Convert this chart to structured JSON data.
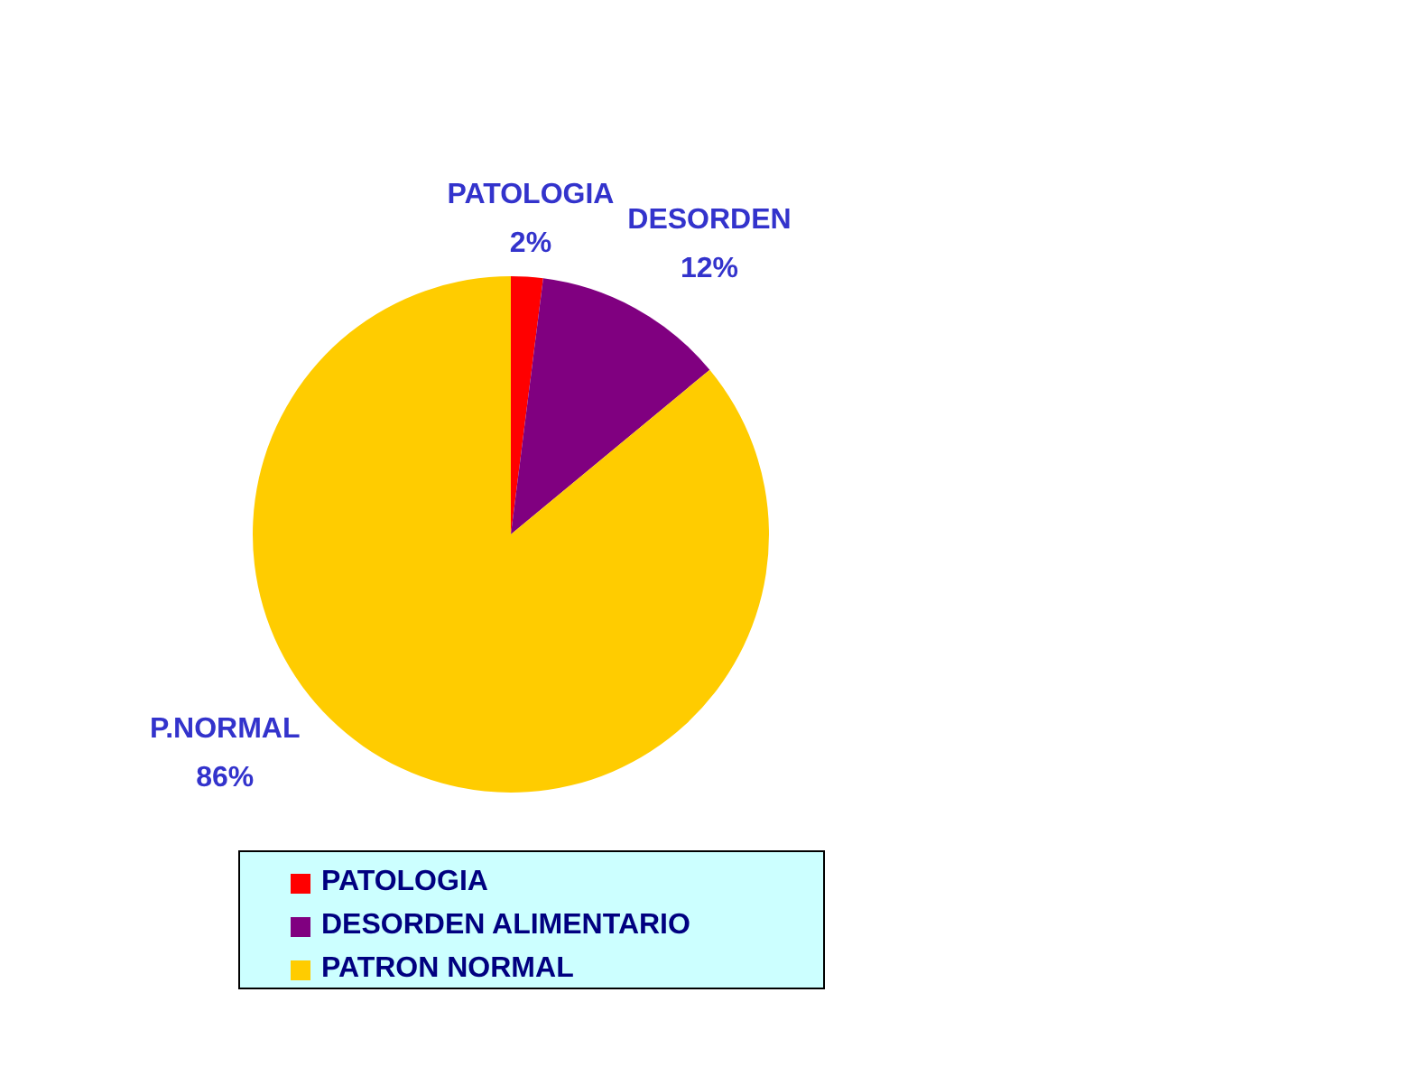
{
  "chart_data": {
    "type": "pie",
    "categories": [
      "PATOLOGIA",
      "DESORDEN ALIMENTARIO",
      "PATRON NORMAL"
    ],
    "values": [
      2,
      12,
      86
    ],
    "colors": [
      "#ff0000",
      "#800080",
      "#ffcc00"
    ],
    "value_labels": [
      "2%",
      "12%",
      "86%"
    ],
    "annotations": [
      {
        "text": "PATOLOGIA",
        "x": "PATOLOGIA"
      },
      {
        "text": "DESORDEN",
        "x": "DESORDEN ALIMENTARIO"
      },
      {
        "text": "P.NORMAL",
        "x": "PATRON NORMAL"
      }
    ],
    "legend": "bottom"
  }
}
